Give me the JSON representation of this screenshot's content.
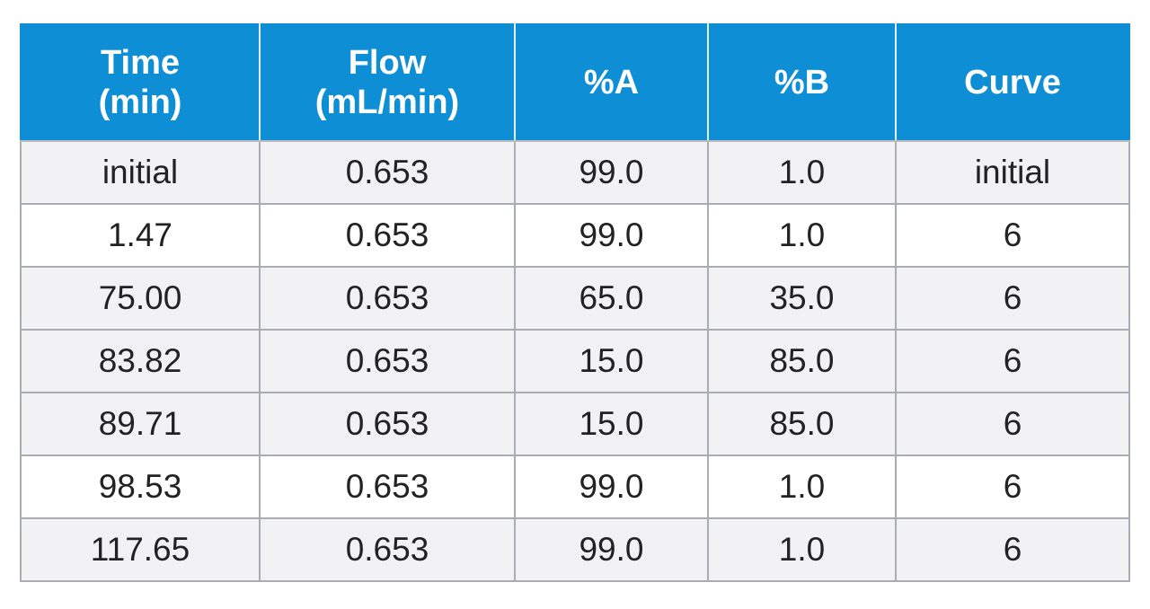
{
  "table": {
    "headers": [
      {
        "lines": [
          "Time",
          "(min)"
        ]
      },
      {
        "lines": [
          "Flow",
          "(mL/min)"
        ]
      },
      {
        "lines": [
          "%A"
        ]
      },
      {
        "lines": [
          "%B"
        ]
      },
      {
        "lines": [
          "Curve"
        ]
      }
    ],
    "rows": [
      [
        "initial",
        "0.653",
        "99.0",
        "1.0",
        "initial"
      ],
      [
        "1.47",
        "0.653",
        "99.0",
        "1.0",
        "6"
      ],
      [
        "75.00",
        "0.653",
        "65.0",
        "35.0",
        "6"
      ],
      [
        "83.82",
        "0.653",
        "15.0",
        "85.0",
        "6"
      ],
      [
        "89.71",
        "0.653",
        "15.0",
        "85.0",
        "6"
      ],
      [
        "98.53",
        "0.653",
        "99.0",
        "1.0",
        "6"
      ],
      [
        "117.65",
        "0.653",
        "99.0",
        "1.0",
        "6"
      ]
    ],
    "colors": {
      "header_bg": "#0e8ed5",
      "header_text": "#ffffff",
      "row_shade": "#f2f2f4",
      "grid": "#a9adb3"
    }
  }
}
